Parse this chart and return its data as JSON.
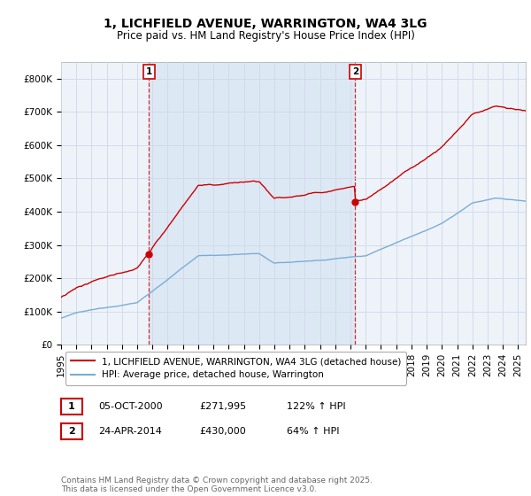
{
  "title": "1, LICHFIELD AVENUE, WARRINGTON, WA4 3LG",
  "subtitle": "Price paid vs. HM Land Registry's House Price Index (HPI)",
  "ylim": [
    0,
    850000
  ],
  "yticks": [
    0,
    100000,
    200000,
    300000,
    400000,
    500000,
    600000,
    700000,
    800000
  ],
  "ytick_labels": [
    "£0",
    "£100K",
    "£200K",
    "£300K",
    "£400K",
    "£500K",
    "£600K",
    "£700K",
    "£800K"
  ],
  "hpi_color": "#7aadd4",
  "sale_color": "#cc0000",
  "vline_color": "#cc0000",
  "grid_color": "#d0d8e8",
  "background_color": "#ffffff",
  "chart_bg_color": "#eef3fa",
  "shaded_region_color": "#dde8f5",
  "sale1_year": 2000.78,
  "sale1_price": 271995,
  "sale2_year": 2014.31,
  "sale2_price": 430000,
  "xlim_start": 1995,
  "xlim_end": 2025.5,
  "legend_sale_label": "1, LICHFIELD AVENUE, WARRINGTON, WA4 3LG (detached house)",
  "legend_hpi_label": "HPI: Average price, detached house, Warrington",
  "table_row1": [
    "1",
    "05-OCT-2000",
    "£271,995",
    "122% ↑ HPI"
  ],
  "table_row2": [
    "2",
    "24-APR-2014",
    "£430,000",
    "64% ↑ HPI"
  ],
  "footer": "Contains HM Land Registry data © Crown copyright and database right 2025.\nThis data is licensed under the Open Government Licence v3.0.",
  "title_fontsize": 10,
  "subtitle_fontsize": 8.5,
  "axis_fontsize": 7.5,
  "legend_fontsize": 7.5,
  "table_fontsize": 8,
  "footer_fontsize": 6.5
}
